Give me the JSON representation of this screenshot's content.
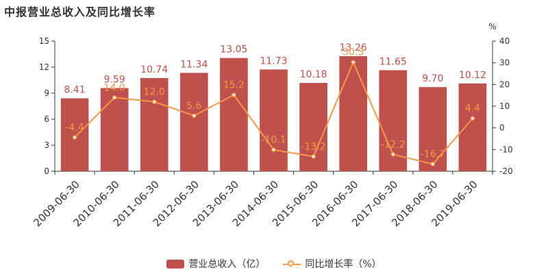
{
  "title": "中报营业总收入及同比增长率",
  "chart_data": {
    "type": "bar",
    "categories": [
      "2009-06-30",
      "2010-06-30",
      "2011-06-30",
      "2012-06-30",
      "2013-06-30",
      "2014-06-30",
      "2015-06-30",
      "2016-06-30",
      "2017-06-30",
      "2018-06-30",
      "2019-06-30"
    ],
    "series": [
      {
        "name": "营业总收入（亿）",
        "type": "bar",
        "axis": "left",
        "color": "#c0504d",
        "values": [
          8.41,
          9.59,
          10.74,
          11.34,
          13.05,
          11.73,
          10.18,
          13.26,
          11.65,
          9.7,
          10.12
        ],
        "labels": [
          "8.41",
          "9.59",
          "10.74",
          "11.34",
          "13.05",
          "11.73",
          "10.18",
          "13.26",
          "11.65",
          "9.70",
          "10.12"
        ]
      },
      {
        "name": "同比增长率（%）",
        "type": "line",
        "axis": "right",
        "color": "#f79646",
        "values": [
          -4.4,
          14.0,
          12.0,
          5.6,
          15.2,
          -10.1,
          -13.2,
          30.3,
          -12.2,
          -16.7,
          4.4
        ],
        "labels": [
          "-4.4",
          "14.0",
          "12.0",
          "5.6",
          "15.2",
          "-10.1",
          "-13.2",
          "30.3",
          "-12.2",
          "-16.7",
          "4.4"
        ]
      }
    ],
    "y_left": {
      "ylim": [
        0,
        15
      ],
      "ticks": [
        "0",
        "3",
        "6",
        "9",
        "12",
        "15"
      ]
    },
    "y_right": {
      "ylim": [
        -20,
        40
      ],
      "unit": "%",
      "ticks": [
        "-20",
        "-10",
        "0",
        "10",
        "20",
        "30",
        "40"
      ]
    },
    "grid": false,
    "legend": "bottom-center"
  },
  "legend": {
    "bar_label": "营业总收入（亿）",
    "line_label": "同比增长率（%）"
  }
}
